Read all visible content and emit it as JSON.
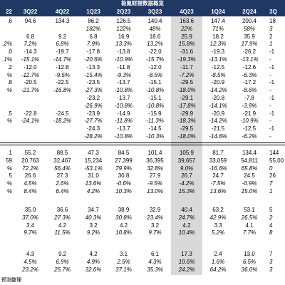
{
  "title": "极氪财报数据概览",
  "colors": {
    "header_bg": "#1f3864",
    "header_text": "#ffffff",
    "highlight_bg": "#d9d9d9",
    "text": "#000000"
  },
  "columns": [
    {
      "label": "22"
    },
    {
      "label": "3Q22"
    },
    {
      "label": "4Q22"
    },
    {
      "label": "1Q23"
    },
    {
      "label": "2Q23"
    },
    {
      "label": "3Q23"
    },
    {
      "label": "4Q23",
      "highlight": true
    },
    {
      "label": "1Q24"
    },
    {
      "label": "2Q24"
    },
    {
      "label": "3Q"
    }
  ],
  "sections": [
    {
      "rows": [
        {
          "cells": [
            ".6",
            "94.6",
            "134.3",
            "86.2",
            "126.5",
            "140.4",
            "163.6",
            "147.4",
            "200.4",
            "18"
          ]
        },
        {
          "italic": true,
          "cells": [
            "",
            "",
            "",
            "182%",
            "122%",
            "48%",
            "22%",
            "71%",
            "58%",
            "3"
          ]
        },
        {
          "cells": [
            "",
            "6.8",
            "9.2",
            "6.8",
            "16.9",
            "18.6",
            "25.9",
            "18.2",
            "35.9",
            "2"
          ]
        },
        {
          "italic": true,
          "cells": [
            ".2%",
            "7.2%",
            "6.8%",
            "7.9%",
            "13.3%",
            "13.2%",
            "15.8%",
            "12.3%",
            "17.9%",
            "1"
          ]
        },
        {
          "cells": [
            ".0",
            "-14.3",
            "-19.7",
            "-17.8",
            "-13.8",
            "-22.0",
            "-31.6",
            "-19.3",
            "-26.2",
            "-1"
          ]
        },
        {
          "italic": true,
          "cells": [
            ".1%",
            "-15.1%",
            "-14.7%",
            "-20.6%",
            "-10.9%",
            "-15.7%",
            "-19.3%",
            "-13.1%",
            "-13.1%",
            "-"
          ]
        },
        {
          "cells": [
            ".2",
            "-12.0",
            "-12.8",
            "-13.3",
            "-11.8",
            "-12.0",
            "-11.7",
            "-12.5",
            "-12.6",
            "-1"
          ]
        },
        {
          "italic": true,
          "cells": [
            "%",
            "-12.7%",
            "-9.5%",
            "-15.4%",
            "-9.3%",
            "-8.5%",
            "-7.2%",
            "-8.5%",
            "-6.3%",
            "-"
          ]
        },
        {
          "cells": [
            ".8",
            "-20.5",
            "-22.5",
            "-23.5",
            "-13.7",
            "-15.1",
            "-29.5",
            "-20.9",
            "-17.2",
            "-1"
          ]
        },
        {
          "italic": true,
          "cells": [
            "%",
            "-21.7%",
            "-16.8%",
            "-27.3%",
            "-10.8%",
            "-10.8%",
            "-18.0%",
            "-14.2%",
            "-8.6%",
            "-"
          ]
        },
        {
          "cells": [
            "",
            "",
            "",
            "-23.2",
            "-13.7",
            "-15.1",
            "-29.1",
            "-20.8",
            "-7.8",
            "-1"
          ]
        },
        {
          "italic": true,
          "cells": [
            "",
            "",
            "",
            "-26.9%",
            "-10.8%",
            "-10.8%",
            "-17.8%",
            "-14.1%",
            "-3.9%",
            "-"
          ]
        },
        {
          "cells": [
            ".5",
            "-22.8",
            "-24.5",
            "-23.9",
            "-14.9",
            "-15.9",
            "-29.9",
            "-20.9",
            "-21.9",
            "-1"
          ]
        },
        {
          "italic": true,
          "cells": [
            "%",
            "-24.1%",
            "-18.2%",
            "-27.7%",
            "-11.8%",
            "-11.3%",
            "-18.3%",
            "-14.2%",
            "-10.9%",
            "-"
          ]
        },
        {
          "cells": [
            "",
            "",
            "",
            "-24.3",
            "-13.7",
            "-14.5",
            "-29.5",
            "-21.5",
            "-12.5",
            "-1"
          ]
        },
        {
          "italic": true,
          "cells": [
            "",
            "",
            "",
            "-28.2%",
            "-10.8%",
            "-10.3%",
            "-18.0%",
            "-14.6%",
            "-6.2%",
            "-"
          ]
        }
      ]
    },
    {
      "rows": [
        {
          "cells": [
            "1",
            "55.2",
            "88.5",
            "47.3",
            "84.5",
            "101.4",
            "105.9",
            "81.7",
            "134.4",
            "144"
          ]
        },
        {
          "cells": [
            "59",
            "20,763",
            "32,467",
            "15,234",
            "27,399",
            "36,395",
            "39,657",
            "33,059",
            "54,811",
            "55,00"
          ]
        },
        {
          "italic": true,
          "cells": [
            "%",
            "72.2%",
            "56.4%",
            "-53.1%",
            "79.9%",
            "32.8%",
            "9.0%",
            "-16.6%",
            "65.8%",
            "0"
          ]
        },
        {
          "cells": [
            "5",
            "26.6",
            "27.3",
            "31.0",
            "30.8",
            "27.9",
            "26.7",
            "24.7",
            "24.5",
            "26"
          ]
        },
        {
          "italic": true,
          "cells": [
            "%",
            "4.5%",
            "2.6%",
            "13.6%",
            "-0.6%",
            "-9.5%",
            "-4.2%",
            "-7.5%",
            "-0.9%",
            "7"
          ]
        },
        {
          "italic": true,
          "cells": [
            "%",
            "8.4%",
            "6.4%",
            "4.2%",
            "10.3%",
            "13.0%",
            "15.3%",
            "13.6%",
            "15.0%",
            "1"
          ]
        }
      ]
    },
    {
      "rows": [
        {
          "cells": [
            "",
            "35.0",
            "36.6",
            "34.7",
            "38.9",
            "32.9",
            "40.4",
            "63.2",
            "53.1",
            "5"
          ]
        },
        {
          "italic": true,
          "cells": [
            "",
            "37.0%",
            "27.3%",
            "40.3%",
            "30.8%",
            "23.4%",
            "24.7%",
            "42.9%",
            "26.5%",
            "2"
          ]
        },
        {
          "cells": [
            "",
            "3.4",
            "4.2",
            "3.2",
            "4.2",
            "3.2",
            "4.2",
            "3.3",
            "4.1",
            "4"
          ]
        },
        {
          "italic": true,
          "cells": [
            "",
            "9.7%",
            "11.5%",
            "9.2%",
            "10.8%",
            "9.7%",
            "10.4%",
            "5.2%",
            "7.7%",
            "8"
          ]
        }
      ]
    },
    {
      "rows": [
        {
          "cells": [
            "",
            "4.3",
            "9.2",
            "4.2",
            "3.1",
            "6.1",
            "17.3",
            "2.4",
            "13.0",
            "7"
          ]
        },
        {
          "italic": true,
          "cells": [
            "",
            "4.5%",
            "6.9%",
            "4.9%",
            "2.5%",
            "4.3%",
            "10.6%",
            "1.6%",
            "6.5%",
            "3"
          ]
        },
        {
          "italic": true,
          "cells": [
            "",
            "23.2%",
            "25.7%",
            "32.6%",
            "37.1%",
            "35.3%",
            "24.2%",
            "64.2%",
            "36.0%",
            "3"
          ]
        }
      ]
    }
  ],
  "footnote": "预测整理"
}
